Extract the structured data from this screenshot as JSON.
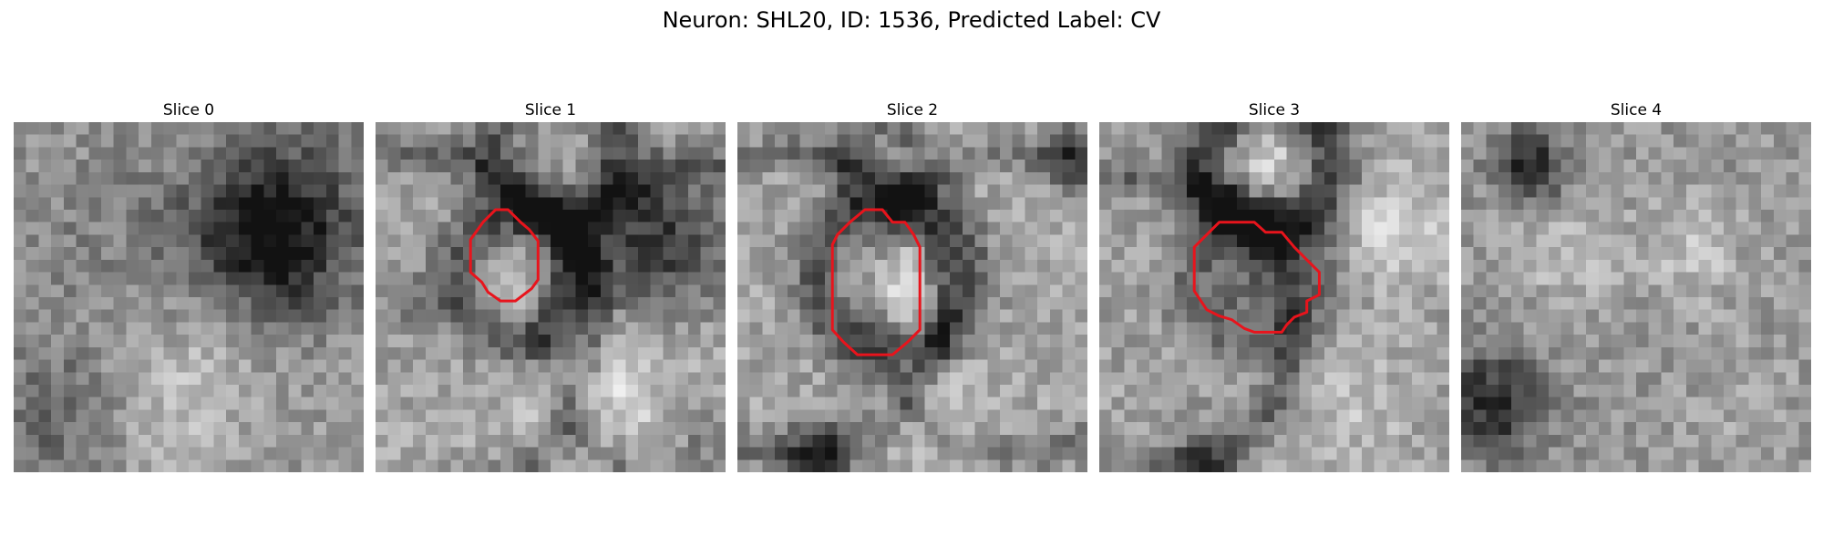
{
  "figure": {
    "title": "Neuron: SHL20, ID: 1536, Predicted Label: CV"
  },
  "panels": [
    {
      "title": "Slice 0",
      "has_roi_outline": false,
      "seed": 11
    },
    {
      "title": "Slice 1",
      "has_roi_outline": true,
      "seed": 23
    },
    {
      "title": "Slice 2",
      "has_roi_outline": true,
      "seed": 37
    },
    {
      "title": "Slice 3",
      "has_roi_outline": true,
      "seed": 49
    },
    {
      "title": "Slice 4",
      "has_roi_outline": false,
      "seed": 61
    }
  ],
  "colors": {
    "roi_outline": "#e8141c",
    "background": "#ffffff"
  },
  "image_style": "grayscale"
}
